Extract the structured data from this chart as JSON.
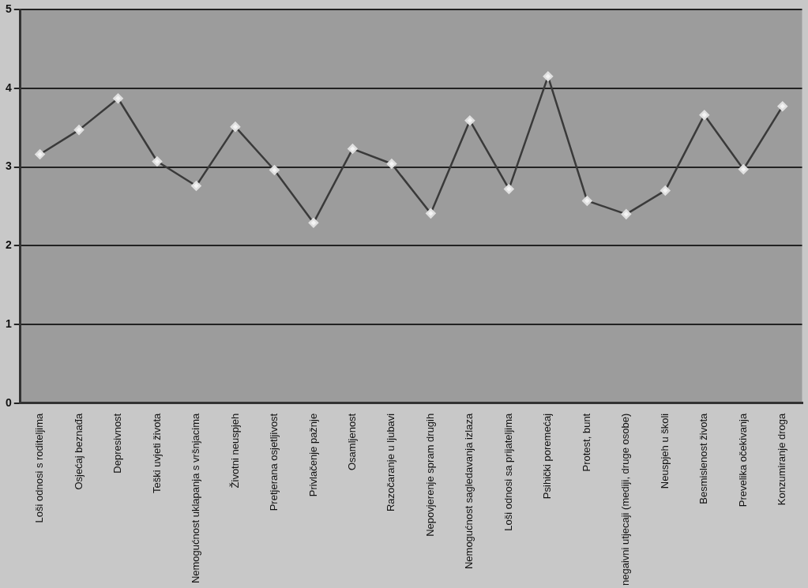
{
  "chart_data": {
    "type": "line",
    "categories": [
      "Loši odnosi s roditeljima",
      "Osjećaj beznađa",
      "Depresivnost",
      "Teški uvjeti života",
      "Nemogućnost uklapanja s vršnjacima",
      "Životni neuspjeh",
      "Pretjerana osjetljivost",
      "Privlačenje pažnje",
      "Osamljenost",
      "Razočaranje u ljubavi",
      "Nepovjerenje spram drugih",
      "Nemogućnost sagledavanja izlaza",
      "Loši odnosi sa prijateljima",
      "Psihički poremećaj",
      "Protest, bunt",
      "negaivni utjecaji (mediji, druge osobe)",
      "Neuspjeh u školi",
      "Besmislenost života",
      "Prevelika očekivanja",
      "Konzumiranje droga"
    ],
    "series": [
      {
        "color": "#3a3a3a",
        "values": [
          3.16,
          3.47,
          3.87,
          3.07,
          2.76,
          3.51,
          2.96,
          2.29,
          3.23,
          3.04,
          2.41,
          3.59,
          2.72,
          4.15,
          2.57,
          2.4,
          2.7,
          3.66,
          2.97,
          3.77
        ]
      }
    ],
    "ylim": [
      0,
      5
    ],
    "yticks": [
      0,
      1,
      2,
      3,
      4,
      5
    ],
    "grid": "y",
    "legend": false,
    "marker": "diamond",
    "line_style": "solid"
  }
}
